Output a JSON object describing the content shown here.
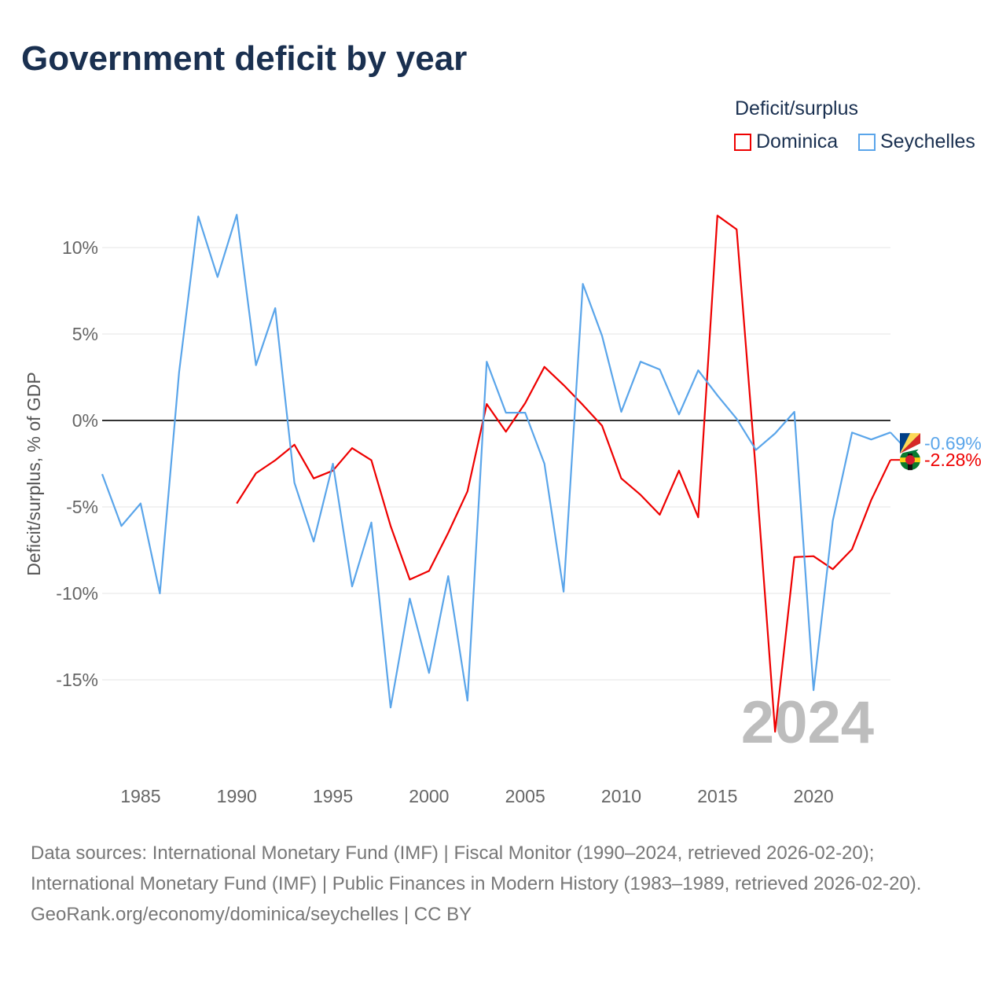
{
  "chart_data": {
    "type": "line",
    "title": "Government deficit by year",
    "xlabel": "",
    "ylabel": "Deficit/surplus, % of GDP",
    "legend_title": "Deficit/surplus",
    "legend_position": "top-right",
    "xlim": [
      1983,
      2024
    ],
    "x_ticks": [
      "1985",
      "1990",
      "1995",
      "2000",
      "2005",
      "2010",
      "2015",
      "2020"
    ],
    "y_ticks": [
      {
        "value": 10,
        "label": "10%"
      },
      {
        "value": 5,
        "label": "5%"
      },
      {
        "value": 0,
        "label": "0%"
      },
      {
        "value": -5,
        "label": "-5%"
      },
      {
        "value": -10,
        "label": "-10%"
      },
      {
        "value": -15,
        "label": "-15%"
      }
    ],
    "year_watermark": "2024",
    "series": [
      {
        "name": "Dominica",
        "color": "#ee0000",
        "end_label": "-2.28%",
        "x": [
          1990,
          1991,
          1992,
          1993,
          1994,
          1995,
          1996,
          1997,
          1998,
          1999,
          2000,
          2001,
          2002,
          2003,
          2004,
          2005,
          2006,
          2007,
          2008,
          2009,
          2010,
          2011,
          2012,
          2013,
          2014,
          2015,
          2016,
          2017,
          2018,
          2019,
          2020,
          2021,
          2022,
          2023,
          2024
        ],
        "values": [
          -4.8,
          -3.05,
          -2.3,
          -1.4,
          -3.35,
          -2.9,
          -1.6,
          -2.3,
          -6.1,
          -9.2,
          -8.7,
          -6.5,
          -4.1,
          0.95,
          -0.65,
          1.0,
          3.1,
          2.05,
          0.9,
          -0.3,
          -3.35,
          -4.3,
          -5.45,
          -2.9,
          -5.6,
          11.85,
          11.05,
          -3.0,
          -18.0,
          -7.9,
          -7.85,
          -8.6,
          -7.45,
          -4.6,
          -2.28
        ]
      },
      {
        "name": "Seychelles",
        "color": "#5aa5ea",
        "end_label": "-0.69%",
        "x": [
          1983,
          1984,
          1985,
          1986,
          1987,
          1988,
          1989,
          1990,
          1991,
          1992,
          1993,
          1994,
          1995,
          1996,
          1997,
          1998,
          1999,
          2000,
          2001,
          2002,
          2003,
          2004,
          2005,
          2006,
          2007,
          2008,
          2009,
          2010,
          2011,
          2012,
          2013,
          2014,
          2015,
          2016,
          2017,
          2018,
          2019,
          2020,
          2021,
          2022,
          2023,
          2024
        ],
        "values": [
          -3.1,
          -6.1,
          -4.8,
          -10.0,
          2.8,
          11.8,
          8.3,
          11.9,
          3.2,
          6.5,
          -3.6,
          -7.0,
          -2.5,
          -9.6,
          -5.9,
          -16.6,
          -10.3,
          -14.6,
          -9.0,
          -16.2,
          3.4,
          0.45,
          0.45,
          -2.5,
          -9.9,
          7.9,
          4.9,
          0.5,
          3.4,
          2.95,
          0.35,
          2.9,
          1.45,
          0.1,
          -1.7,
          -0.75,
          0.5,
          -15.6,
          -5.8,
          -0.7,
          -1.1,
          -0.69
        ]
      }
    ]
  },
  "footer": {
    "sources": "Data sources: International Monetary Fund (IMF) | Fiscal Monitor (1990–2024, retrieved 2026-02-20); International Monetary Fund (IMF) | Public Finances in Modern History (1983–1989, retrieved 2026-02-20).",
    "credit": "GeoRank.org/economy/dominica/seychelles | CC BY"
  }
}
